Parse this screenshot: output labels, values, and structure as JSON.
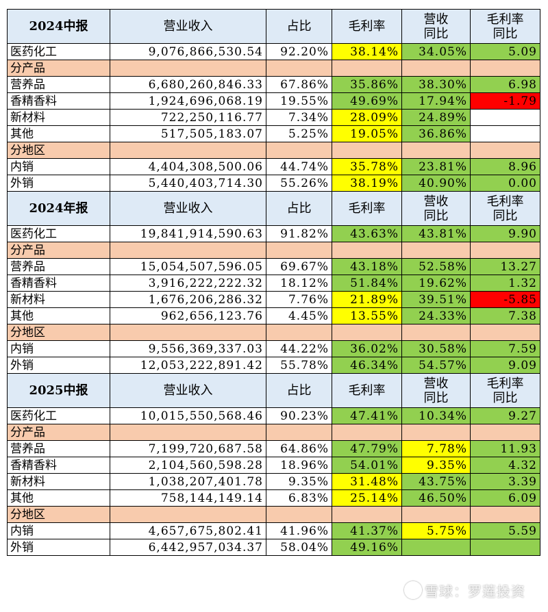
{
  "headers": [
    "营业收入",
    "占比",
    "毛利率",
    "营收\n同比",
    "毛利率\n同比"
  ],
  "sections": [
    {
      "title": "2024中报",
      "rows": [
        {
          "type": "data",
          "name": "医药化工",
          "revenue": "9,076,866,530.54",
          "share": "92.20%",
          "margin": "38.14%",
          "yoy": "34.05%",
          "margin_yoy": "5.09",
          "colors": [
            "y",
            "g",
            "g"
          ]
        },
        {
          "type": "sub",
          "name": "分产品"
        },
        {
          "type": "data",
          "name": "营养品",
          "revenue": "6,680,260,846.33",
          "share": "67.86%",
          "margin": "35.86%",
          "yoy": "38.30%",
          "margin_yoy": "6.98",
          "colors": [
            "g",
            "g",
            "g"
          ]
        },
        {
          "type": "data",
          "name": "香精香料",
          "revenue": "1,924,696,068.19",
          "share": "19.55%",
          "margin": "49.69%",
          "yoy": "17.94%",
          "margin_yoy": "-1.79",
          "colors": [
            "g",
            "g",
            "r"
          ]
        },
        {
          "type": "data",
          "name": "新材料",
          "revenue": "722,250,116.77",
          "share": "7.34%",
          "margin": "28.09%",
          "yoy": "24.89%",
          "margin_yoy": "",
          "colors": [
            "y",
            "g",
            "w"
          ]
        },
        {
          "type": "data",
          "name": "其他",
          "revenue": "517,505,183.07",
          "share": "5.25%",
          "margin": "19.05%",
          "yoy": "36.86%",
          "margin_yoy": "",
          "colors": [
            "y",
            "g",
            "w"
          ]
        },
        {
          "type": "sub",
          "name": "分地区"
        },
        {
          "type": "data",
          "name": "内销",
          "revenue": "4,404,308,500.06",
          "share": "44.74%",
          "margin": "35.78%",
          "yoy": "23.81%",
          "margin_yoy": "8.96",
          "colors": [
            "y",
            "g",
            "g"
          ]
        },
        {
          "type": "data",
          "name": "外销",
          "revenue": "5,440,403,714.30",
          "share": "55.26%",
          "margin": "38.19%",
          "yoy": "40.90%",
          "margin_yoy": "0.00",
          "colors": [
            "y",
            "g",
            "g"
          ]
        }
      ]
    },
    {
      "title": "2024年报",
      "rows": [
        {
          "type": "data",
          "name": "医药化工",
          "revenue": "19,841,914,590.63",
          "share": "91.82%",
          "margin": "43.63%",
          "yoy": "43.81%",
          "margin_yoy": "9.90",
          "colors": [
            "g",
            "g",
            "g"
          ]
        },
        {
          "type": "sub",
          "name": "分产品"
        },
        {
          "type": "data",
          "name": "营养品",
          "revenue": "15,054,507,596.05",
          "share": "69.67%",
          "margin": "43.18%",
          "yoy": "52.58%",
          "margin_yoy": "13.27",
          "colors": [
            "g",
            "g",
            "g"
          ]
        },
        {
          "type": "data",
          "name": "香精香料",
          "revenue": "3,916,222,222.32",
          "share": "18.12%",
          "margin": "51.84%",
          "yoy": "19.62%",
          "margin_yoy": "1.32",
          "colors": [
            "g",
            "g",
            "g"
          ]
        },
        {
          "type": "data",
          "name": "新材料",
          "revenue": "1,676,206,286.32",
          "share": "7.76%",
          "margin": "21.89%",
          "yoy": "39.51%",
          "margin_yoy": "-5.85",
          "colors": [
            "y",
            "g",
            "r"
          ]
        },
        {
          "type": "data",
          "name": "其他",
          "revenue": "962,656,123.76",
          "share": "4.45%",
          "margin": "13.55%",
          "yoy": "24.33%",
          "margin_yoy": "7.38",
          "colors": [
            "y",
            "g",
            "g"
          ]
        },
        {
          "type": "sub",
          "name": "分地区"
        },
        {
          "type": "data",
          "name": "内销",
          "revenue": "9,556,369,337.03",
          "share": "44.22%",
          "margin": "36.02%",
          "yoy": "30.58%",
          "margin_yoy": "7.59",
          "colors": [
            "g",
            "g",
            "g"
          ]
        },
        {
          "type": "data",
          "name": "外销",
          "revenue": "12,053,222,891.42",
          "share": "55.78%",
          "margin": "46.34%",
          "yoy": "54.57%",
          "margin_yoy": "9.09",
          "colors": [
            "g",
            "g",
            "g"
          ]
        }
      ]
    },
    {
      "title": "2025中报",
      "rows": [
        {
          "type": "data",
          "name": "医药化工",
          "revenue": "10,015,550,568.46",
          "share": "90.23%",
          "margin": "47.41%",
          "yoy": "10.34%",
          "margin_yoy": "9.27",
          "colors": [
            "g",
            "g",
            "g"
          ]
        },
        {
          "type": "sub",
          "name": "分产品"
        },
        {
          "type": "data",
          "name": "营养品",
          "revenue": "7,199,720,687.58",
          "share": "64.86%",
          "margin": "47.79%",
          "yoy": "7.78%",
          "margin_yoy": "11.93",
          "colors": [
            "g",
            "y",
            "g"
          ]
        },
        {
          "type": "data",
          "name": "香精香料",
          "revenue": "2,104,560,598.28",
          "share": "18.96%",
          "margin": "54.01%",
          "yoy": "9.35%",
          "margin_yoy": "4.32",
          "colors": [
            "g",
            "y",
            "g"
          ]
        },
        {
          "type": "data",
          "name": "新材料",
          "revenue": "1,038,207,401.78",
          "share": "9.35%",
          "margin": "31.48%",
          "yoy": "43.75%",
          "margin_yoy": "3.39",
          "colors": [
            "y",
            "g",
            "g"
          ]
        },
        {
          "type": "data",
          "name": "其他",
          "revenue": "758,144,149.14",
          "share": "6.83%",
          "margin": "25.14%",
          "yoy": "46.50%",
          "margin_yoy": "6.09",
          "colors": [
            "y",
            "g",
            "g"
          ]
        },
        {
          "type": "sub",
          "name": "分地区"
        },
        {
          "type": "data",
          "name": "内销",
          "revenue": "4,657,675,802.41",
          "share": "41.96%",
          "margin": "41.37%",
          "yoy": "5.75%",
          "margin_yoy": "5.59",
          "colors": [
            "g",
            "y",
            "g"
          ]
        },
        {
          "type": "data",
          "name": "外销",
          "revenue": "6,442,957,034.37",
          "share": "58.04%",
          "margin": "49.16%",
          "yoy": "",
          "margin_yoy": "",
          "colors": [
            "g",
            "g",
            "g"
          ]
        }
      ]
    }
  ],
  "watermark": "雪球：罗莲投资"
}
